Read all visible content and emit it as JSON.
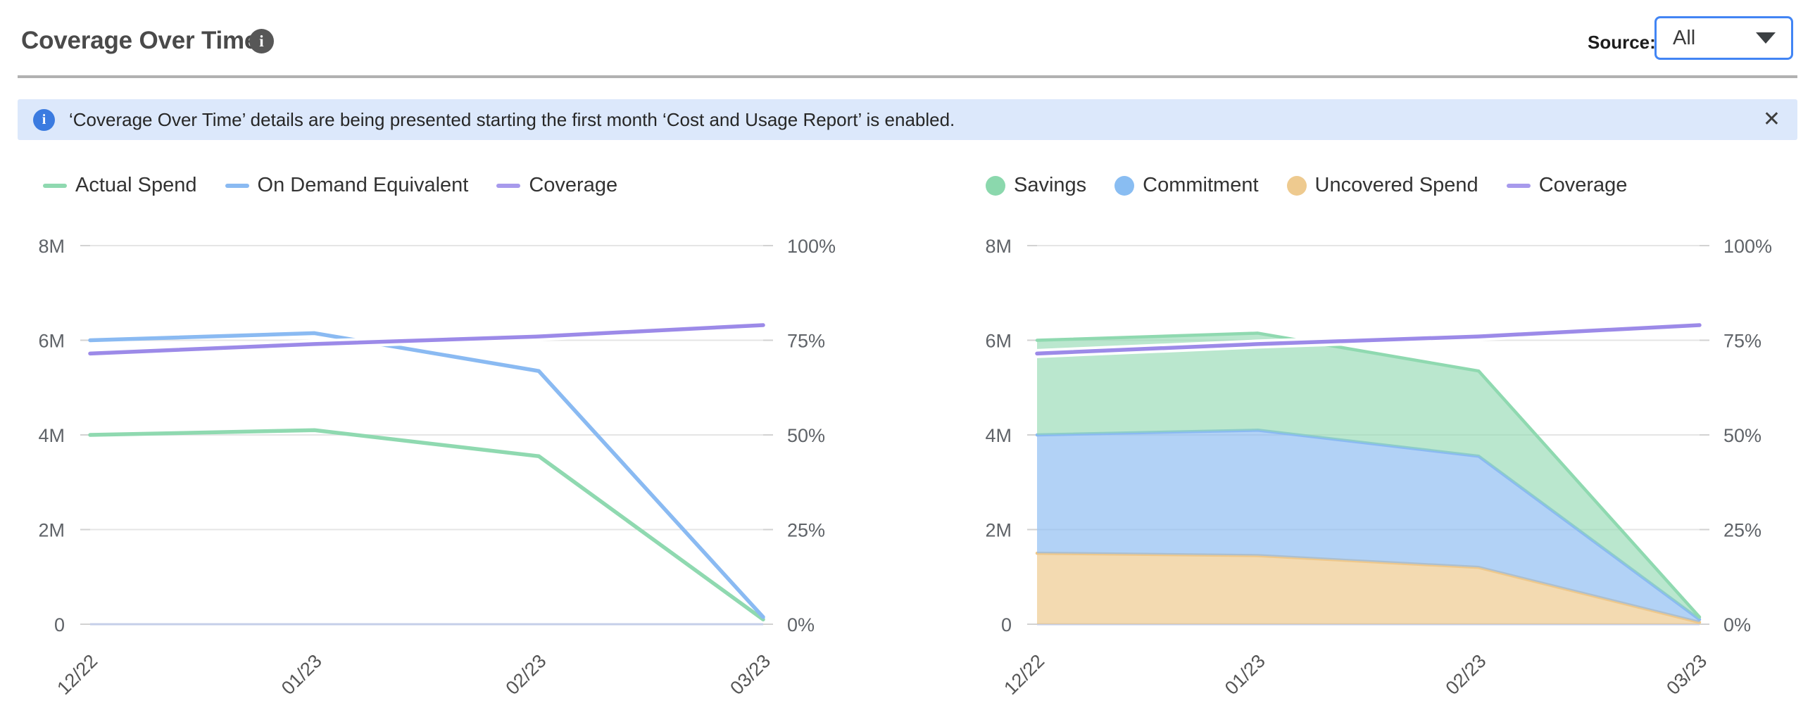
{
  "icons": {
    "info": "i",
    "close": "✕",
    "caret": "chevron-down"
  },
  "header": {
    "title": "Coverage Over Time",
    "source_label": "Source:",
    "source_value": "All"
  },
  "banner": {
    "text": "‘Coverage Over Time’ details are being presented starting the first month ‘Cost and Usage Report’ is enabled."
  },
  "colors": {
    "green": "#8fd9b0",
    "blue": "#8abaf2",
    "purple": "#9c8ae8",
    "orange_edge": "#eec88c",
    "banner_bg": "#dce8fb",
    "accent_blue": "#4285f4",
    "gridline": "#e5e5e5",
    "zero_axis": "#c5cfe9"
  },
  "chart_data": [
    {
      "type": "line",
      "title": "",
      "categories": [
        "12/22",
        "01/23",
        "02/23",
        "03/23"
      ],
      "y_left": {
        "label": "",
        "unit": "M",
        "min": 0,
        "max": 8,
        "ticks": [
          "0",
          "2M",
          "4M",
          "6M",
          "8M"
        ]
      },
      "y_right": {
        "label": "",
        "unit": "%",
        "min": 0,
        "max": 100,
        "ticks": [
          "0%",
          "25%",
          "50%",
          "75%",
          "100%"
        ]
      },
      "grid": "horizontal",
      "legend_position": "top-left",
      "legend": [
        {
          "label": "Actual Spend",
          "marker": "line",
          "color": "#8fd9b0"
        },
        {
          "label": "On Demand Equivalent",
          "marker": "line",
          "color": "#8abaf2"
        },
        {
          "label": "Coverage",
          "marker": "line",
          "color": "#a79aec"
        }
      ],
      "series": [
        {
          "name": "Actual Spend",
          "kind": "line",
          "axis": "left",
          "color": "#8fd9b0",
          "values": [
            4.0,
            4.1,
            3.55,
            0.1
          ]
        },
        {
          "name": "On Demand Equivalent",
          "kind": "line",
          "axis": "left",
          "color": "#8abaf2",
          "values": [
            6.0,
            6.15,
            5.35,
            0.15
          ]
        },
        {
          "name": "Coverage",
          "kind": "line",
          "axis": "right",
          "color": "#9c8ae8",
          "halo": "#ffffff",
          "values": [
            71.5,
            74,
            76,
            79
          ]
        }
      ]
    },
    {
      "type": "area",
      "stacked": true,
      "title": "",
      "categories": [
        "12/22",
        "01/23",
        "02/23",
        "03/23"
      ],
      "y_left": {
        "label": "",
        "unit": "M",
        "min": 0,
        "max": 8,
        "ticks": [
          "0",
          "2M",
          "4M",
          "6M",
          "8M"
        ]
      },
      "y_right": {
        "label": "",
        "unit": "%",
        "min": 0,
        "max": 100,
        "ticks": [
          "0%",
          "25%",
          "50%",
          "75%",
          "100%"
        ]
      },
      "grid": "horizontal",
      "legend_position": "top-left",
      "legend": [
        {
          "label": "Savings",
          "marker": "circle",
          "color": "#8bd8ad"
        },
        {
          "label": "Commitment",
          "marker": "circle",
          "color": "#89bdf2"
        },
        {
          "label": "Uncovered Spend",
          "marker": "circle",
          "color": "#eeca8f"
        },
        {
          "label": "Coverage",
          "marker": "line",
          "color": "#a79aec"
        }
      ],
      "series": [
        {
          "name": "Uncovered Spend",
          "kind": "area",
          "axis": "left",
          "color": "#eec88c",
          "fill_opacity": 0.68,
          "values": [
            1.5,
            1.45,
            1.2,
            0.04
          ]
        },
        {
          "name": "Commitment",
          "kind": "area",
          "axis": "left",
          "color": "#8abaf2",
          "fill_opacity": 0.66,
          "values": [
            2.5,
            2.65,
            2.35,
            0.06
          ]
        },
        {
          "name": "Savings",
          "kind": "area",
          "axis": "left",
          "color": "#8fd9b0",
          "fill_opacity": 0.62,
          "values": [
            2.0,
            2.05,
            1.8,
            0.05
          ]
        },
        {
          "name": "Coverage",
          "kind": "line",
          "axis": "right",
          "color": "#9c8ae8",
          "halo": "#ffffff",
          "values": [
            71.5,
            74,
            76,
            79
          ]
        }
      ]
    }
  ]
}
